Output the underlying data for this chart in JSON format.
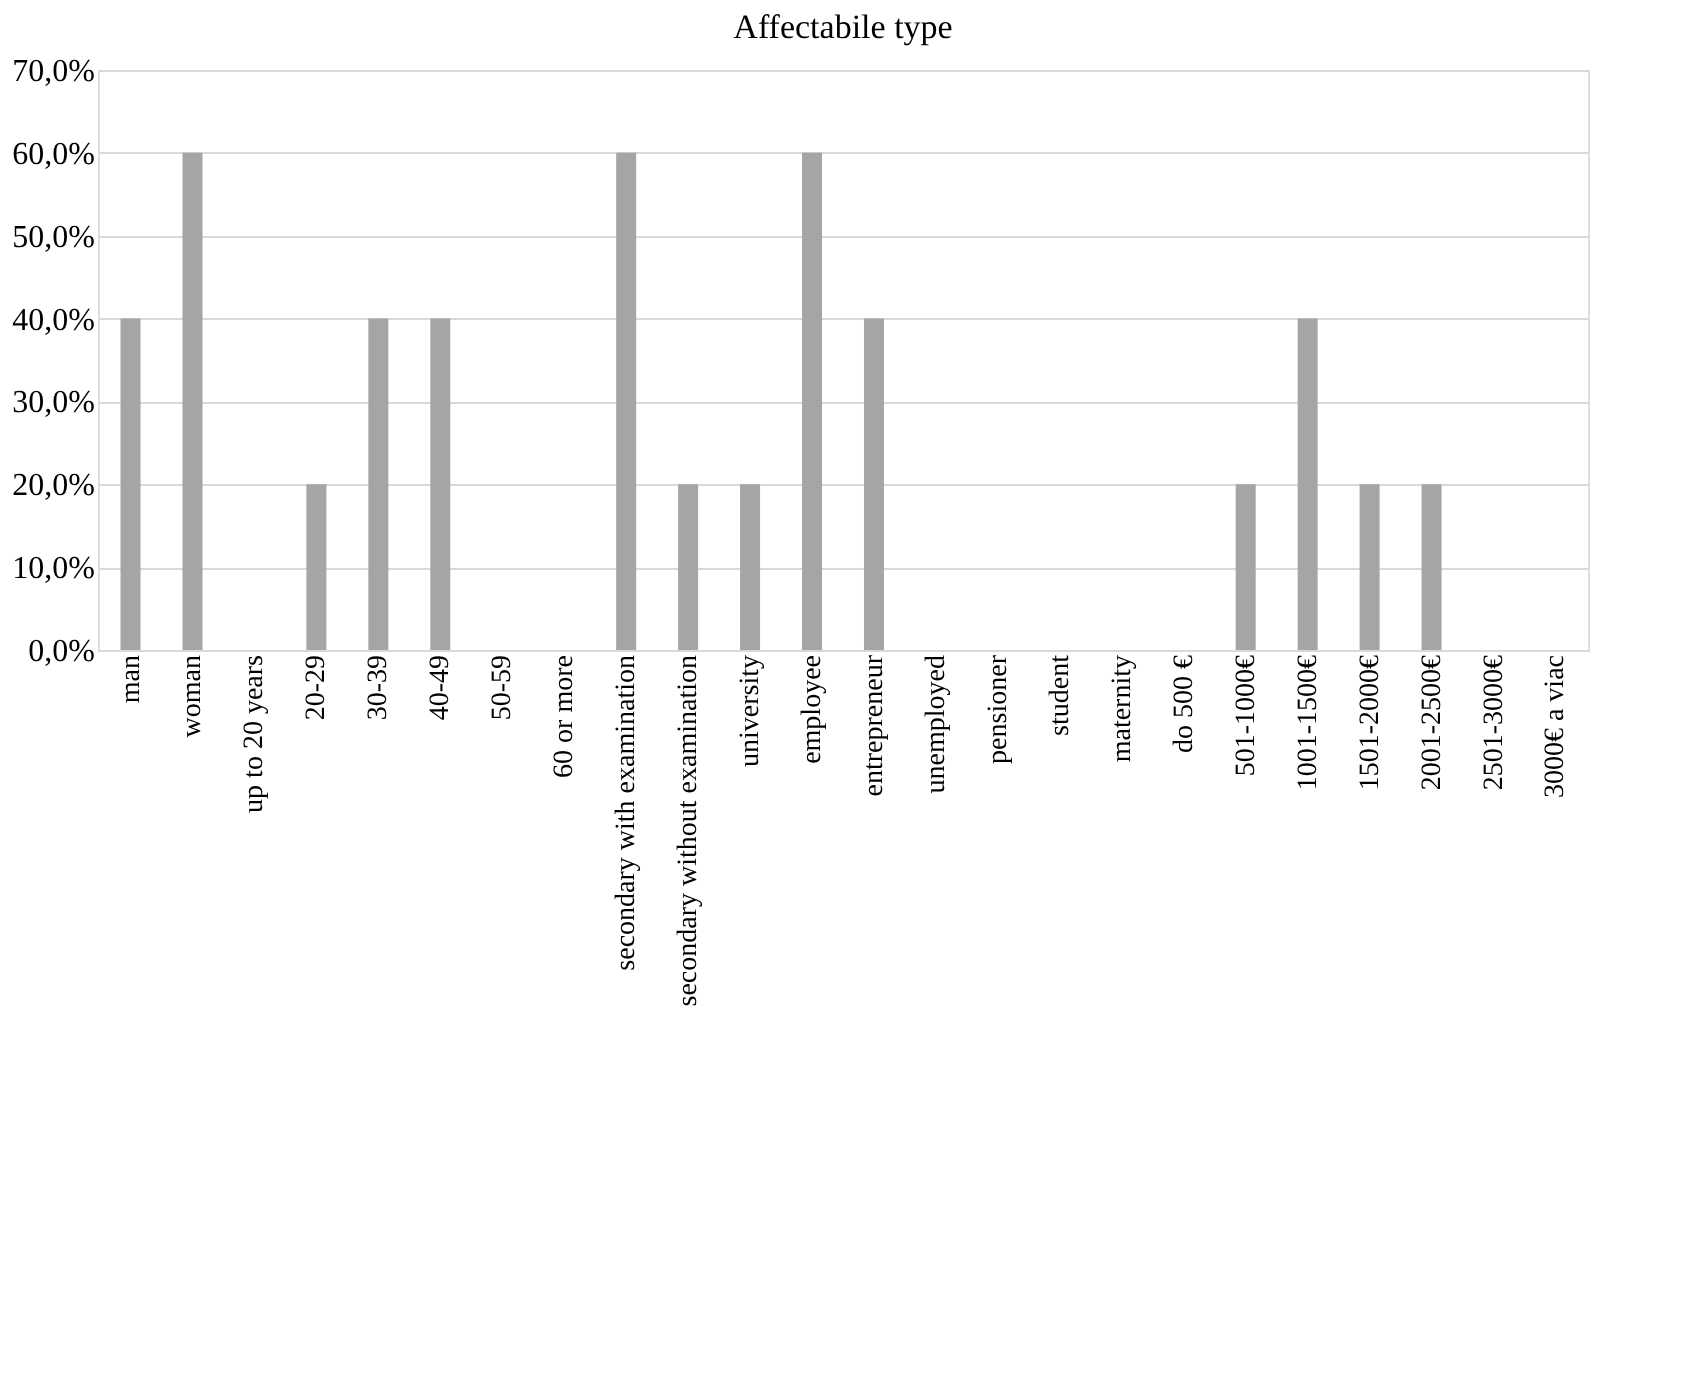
{
  "chart_data": {
    "type": "bar",
    "title": "Affectabile type",
    "categories": [
      "man",
      "woman",
      "up to 20 years",
      "20-29",
      "30-39",
      "40-49",
      "50-59",
      "60 or more",
      "secondary with examination",
      "secondary without examination",
      "university",
      "employee",
      "entrepreneur",
      "unemployed",
      "pensioner",
      "student",
      "maternity",
      "do 500 €",
      "501-1000€",
      "1001-1500€",
      "1501-2000€",
      "2001-2500€",
      "2501-3000€",
      "3000€ a viac"
    ],
    "values": [
      40,
      60,
      0,
      20,
      40,
      40,
      0,
      0,
      60,
      20,
      20,
      60,
      40,
      0,
      0,
      0,
      0,
      0,
      20,
      40,
      20,
      20,
      0,
      0
    ],
    "color": "#a5a5a5",
    "ylim": [
      0,
      70
    ],
    "yticks": [
      {
        "value": 0,
        "label": "0,0%"
      },
      {
        "value": 10,
        "label": "10,0%"
      },
      {
        "value": 20,
        "label": "20,0%"
      },
      {
        "value": 30,
        "label": "30,0%"
      },
      {
        "value": 40,
        "label": "40,0%"
      },
      {
        "value": 50,
        "label": "50,0%"
      },
      {
        "value": 60,
        "label": "60,0%"
      },
      {
        "value": 70,
        "label": "70,0%"
      }
    ],
    "grid": "y"
  }
}
